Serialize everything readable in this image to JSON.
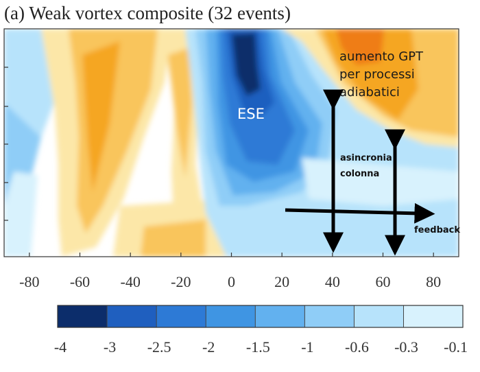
{
  "chart_data": {
    "type": "heatmap",
    "title": "(a) Weak vortex composite (32 events)",
    "xlabel": "",
    "ylabel": "",
    "x_ticks": [
      -80,
      -60,
      -40,
      -20,
      0,
      20,
      40,
      60,
      80
    ],
    "xlim": [
      -90,
      90
    ],
    "colorbar": {
      "boundaries": [
        -4,
        -3,
        -2.5,
        -2,
        -1.5,
        -1,
        -0.6,
        -0.3,
        -0.1
      ],
      "tick_labels": [
        "-4",
        "-3",
        "-2.5",
        "-2",
        "-1.5",
        "-1",
        "-0.6",
        "-0.3",
        "-0.1"
      ],
      "colors": [
        "#0c2d6b",
        "#1f5fbf",
        "#2d7ad6",
        "#3f95e3",
        "#62b1ef",
        "#8fcdf7",
        "#b7e3fb",
        "#d8f2fd"
      ]
    },
    "colors": {
      "neutral": "#ffffff",
      "warm_light": "#fce7a8",
      "warm": "#f9c55b",
      "warm_strong": "#f5a623",
      "warm_max": "#ef7d14"
    },
    "annotations": {
      "ese": "ESE",
      "gpt_line1": "aumento GPT",
      "gpt_line2": "per processi",
      "gpt_line3": "adiabatici",
      "asincronia_line1": "asincronia",
      "asincronia_line2": "colonna",
      "feedback": "feedback"
    }
  }
}
